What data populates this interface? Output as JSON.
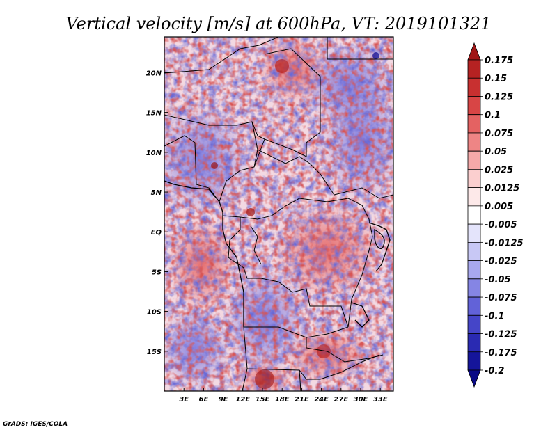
{
  "title": "Vertical velocity [m/s] at 600hPa, VT: 2019101321",
  "credit": "GrADS: IGES/COLA",
  "map": {
    "lat_labels": [
      "20N",
      "15N",
      "10N",
      "5N",
      "EQ",
      "5S",
      "10S",
      "15S"
    ],
    "lat_values": [
      20,
      15,
      10,
      5,
      0,
      -5,
      -10,
      -15
    ],
    "lon_labels": [
      "3E",
      "6E",
      "9E",
      "12E",
      "15E",
      "18E",
      "21E",
      "24E",
      "27E",
      "30E",
      "33E"
    ],
    "lon_values": [
      3,
      6,
      9,
      12,
      15,
      18,
      21,
      24,
      27,
      30,
      33
    ],
    "lon_range": [
      0,
      35
    ],
    "lat_range": [
      -20,
      24.5
    ]
  },
  "colorbar": {
    "labels": [
      "0.175",
      "0.15",
      "0.125",
      "0.1",
      "0.075",
      "0.05",
      "0.025",
      "0.0125",
      "0.005",
      "-0.005",
      "-0.0125",
      "-0.025",
      "-0.05",
      "-0.075",
      "-0.1",
      "-0.125",
      "-0.175",
      "-0.2"
    ],
    "colors": [
      "#a01616",
      "#b52222",
      "#c83030",
      "#d84545",
      "#e46262",
      "#ee8585",
      "#f5a9a9",
      "#fbcfcf",
      "#fde9e9",
      "#ffffff",
      "#e4e4fb",
      "#c8c8f5",
      "#a8a8ee",
      "#8585e4",
      "#6262d8",
      "#4545c8",
      "#2a2ab2",
      "#15159a",
      "#0a0a85"
    ]
  }
}
